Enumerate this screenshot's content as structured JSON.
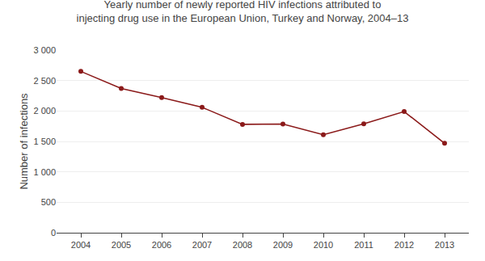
{
  "chart_data": {
    "type": "line",
    "title": "Yearly number of newly reported HIV infections attributed to\ninjecting drug use in the European Union, Turkey and Norway, 2004–13",
    "y_label": "Number of infections",
    "x": [
      2004,
      2005,
      2006,
      2007,
      2008,
      2009,
      2010,
      2011,
      2012,
      2013
    ],
    "values": [
      2650,
      2370,
      2220,
      2060,
      1780,
      1785,
      1610,
      1790,
      1990,
      1470
    ],
    "color": "#8b1a1a",
    "marker": "circle",
    "xlim": [
      2003.4,
      2013.6
    ],
    "xticks": [
      2004,
      2005,
      2006,
      2007,
      2008,
      2009,
      2010,
      2011,
      2012,
      2013
    ],
    "ylim": [
      0,
      3000
    ],
    "yticks": [
      0,
      500,
      {
        "value": 1000,
        "label": "1 000"
      },
      {
        "value": 1500,
        "label": "1 500"
      },
      {
        "value": 2000,
        "label": "2 000"
      },
      {
        "value": 2500,
        "label": "2 500"
      },
      {
        "value": 3000,
        "label": "3 000"
      }
    ],
    "grid": "y"
  }
}
